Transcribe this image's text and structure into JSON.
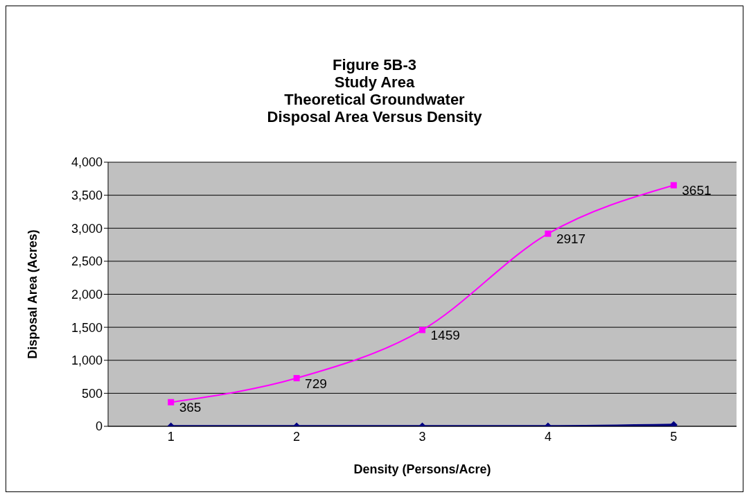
{
  "chart_data": {
    "type": "line",
    "title": "Figure 5B-3\nStudy Area\nTheoretical Groundwater\nDisposal Area Versus Density",
    "xlabel": "Density (Persons/Acre)",
    "ylabel": "Disposal  Area (Acres)",
    "categories": [
      "1",
      "2",
      "3",
      "4",
      "5"
    ],
    "series": [
      {
        "color": "#000080",
        "marker": "diamond",
        "values": [
          0,
          0,
          0,
          0,
          20
        ]
      },
      {
        "color": "#ff00ff",
        "marker": "square",
        "values": [
          365,
          729,
          1459,
          2917,
          3651
        ],
        "value_labels": [
          "365",
          "729",
          "1459",
          "2917",
          "3651"
        ]
      }
    ],
    "ylim": [
      0,
      4000
    ],
    "yticks": [
      {
        "value": 0,
        "label": "0"
      },
      {
        "value": 500,
        "label": "500"
      },
      {
        "value": 1000,
        "label": "1,000"
      },
      {
        "value": 1500,
        "label": "1,500"
      },
      {
        "value": 2000,
        "label": "2,000"
      },
      {
        "value": 2500,
        "label": "2,500"
      },
      {
        "value": 3000,
        "label": "3,000"
      },
      {
        "value": 3500,
        "label": "3,500"
      },
      {
        "value": 4000,
        "label": "4,000"
      }
    ],
    "grid": "y",
    "legend": false,
    "line_style": "solid"
  }
}
